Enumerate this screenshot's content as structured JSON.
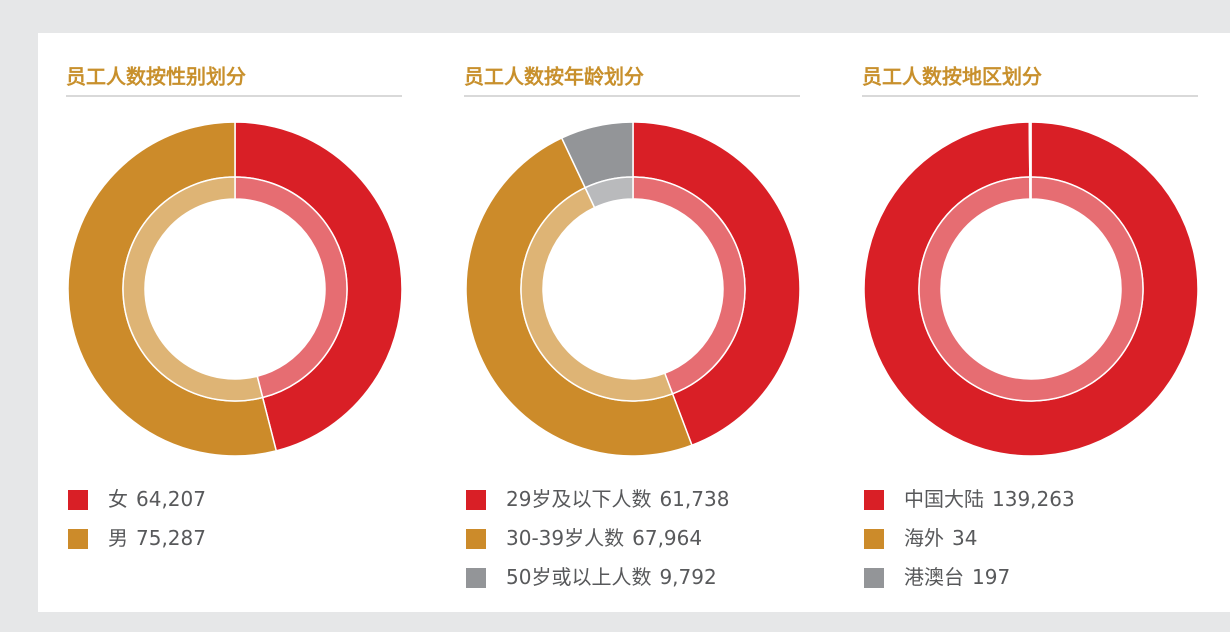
{
  "chart_data": [
    {
      "type": "pie",
      "title": "员工人数按性别划分",
      "categories": [
        "女",
        "男"
      ],
      "values": [
        64207,
        75287
      ],
      "value_labels": [
        "64,207",
        "75,287"
      ],
      "colors": [
        "#d91f26",
        "#cc8b2a"
      ]
    },
    {
      "type": "pie",
      "title": "员工人数按年龄划分",
      "categories": [
        "29岁及以下人数",
        "30-39岁人数",
        "50岁或以上人数"
      ],
      "values": [
        61738,
        67964,
        9792
      ],
      "value_labels": [
        "61,738",
        "67,964",
        "9,792"
      ],
      "colors": [
        "#d91f26",
        "#cc8b2a",
        "#939598"
      ]
    },
    {
      "type": "pie",
      "title": "员工人数按地区划分",
      "categories": [
        "中国大陆",
        "海外",
        "港澳台"
      ],
      "values": [
        139263,
        34,
        197
      ],
      "value_labels": [
        "139,263",
        "34",
        "197"
      ],
      "colors": [
        "#d91f26",
        "#cc8b2a",
        "#939598"
      ]
    }
  ]
}
